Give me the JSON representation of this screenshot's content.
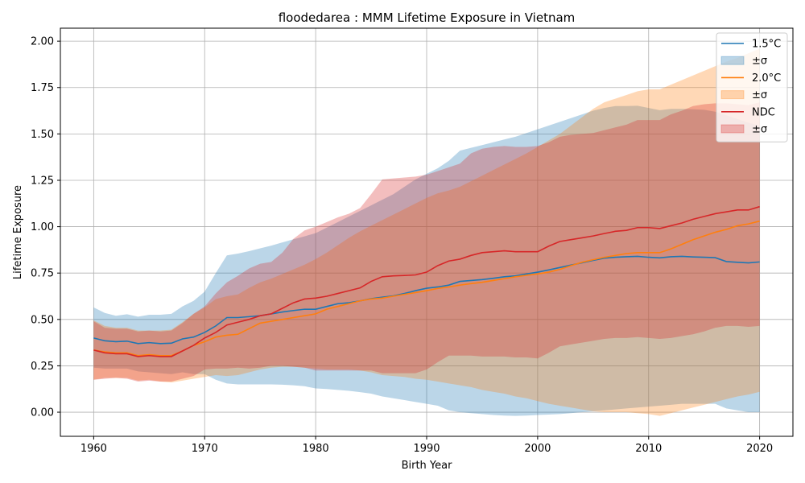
{
  "chart_data": {
    "type": "line",
    "title": "floodedarea : MMM Lifetime Exposure in Vietnam",
    "xlabel": "Birth Year",
    "ylabel": "Lifetime Exposure",
    "xlim": [
      1957,
      2023
    ],
    "ylim": [
      -0.13,
      2.07
    ],
    "xticks": [
      1960,
      1970,
      1980,
      1990,
      2000,
      2010,
      2020
    ],
    "xtick_labels": [
      "1960",
      "1970",
      "1980",
      "1990",
      "2000",
      "2010",
      "2020"
    ],
    "yticks": [
      0.0,
      0.25,
      0.5,
      0.75,
      1.0,
      1.25,
      1.5,
      1.75,
      2.0
    ],
    "ytick_labels": [
      "0.00",
      "0.25",
      "0.50",
      "0.75",
      "1.00",
      "1.25",
      "1.50",
      "1.75",
      "2.00"
    ],
    "grid": true,
    "legend_position": "top-right",
    "x": [
      1960,
      1961,
      1962,
      1963,
      1964,
      1965,
      1966,
      1967,
      1968,
      1969,
      1970,
      1971,
      1972,
      1973,
      1974,
      1975,
      1976,
      1977,
      1978,
      1979,
      1980,
      1981,
      1982,
      1983,
      1984,
      1985,
      1986,
      1987,
      1988,
      1989,
      1990,
      1991,
      1992,
      1993,
      1994,
      1995,
      1996,
      1997,
      1998,
      1999,
      2000,
      2001,
      2002,
      2003,
      2004,
      2005,
      2006,
      2007,
      2008,
      2009,
      2010,
      2011,
      2012,
      2013,
      2014,
      2015,
      2016,
      2017,
      2018,
      2019,
      2020
    ],
    "series": [
      {
        "name": "1.5°C",
        "band_label": "±σ",
        "color": "#1f77b4",
        "band_color": "#1f77b4",
        "values": [
          0.4,
          0.385,
          0.38,
          0.383,
          0.37,
          0.375,
          0.37,
          0.372,
          0.395,
          0.405,
          0.43,
          0.465,
          0.51,
          0.51,
          0.515,
          0.52,
          0.53,
          0.54,
          0.548,
          0.555,
          0.555,
          0.57,
          0.585,
          0.59,
          0.6,
          0.612,
          0.62,
          0.627,
          0.64,
          0.655,
          0.668,
          0.675,
          0.685,
          0.705,
          0.71,
          0.715,
          0.722,
          0.73,
          0.735,
          0.745,
          0.755,
          0.767,
          0.78,
          0.793,
          0.805,
          0.818,
          0.83,
          0.835,
          0.838,
          0.84,
          0.835,
          0.832,
          0.838,
          0.84,
          0.837,
          0.835,
          0.833,
          0.812,
          0.808,
          0.805,
          0.81
        ],
        "upper": [
          0.565,
          0.535,
          0.52,
          0.528,
          0.515,
          0.525,
          0.525,
          0.53,
          0.57,
          0.6,
          0.65,
          0.75,
          0.845,
          0.855,
          0.868,
          0.883,
          0.898,
          0.915,
          0.932,
          0.948,
          0.965,
          0.995,
          1.025,
          1.055,
          1.085,
          1.115,
          1.145,
          1.175,
          1.215,
          1.255,
          1.285,
          1.315,
          1.355,
          1.41,
          1.425,
          1.44,
          1.455,
          1.47,
          1.485,
          1.505,
          1.525,
          1.545,
          1.565,
          1.585,
          1.605,
          1.625,
          1.64,
          1.65,
          1.65,
          1.652,
          1.64,
          1.628,
          1.635,
          1.635,
          1.633,
          1.63,
          1.62,
          1.6,
          1.58,
          1.56,
          1.545
        ],
        "lower": [
          0.24,
          0.235,
          0.235,
          0.235,
          0.22,
          0.215,
          0.21,
          0.205,
          0.215,
          0.205,
          0.205,
          0.175,
          0.155,
          0.15,
          0.15,
          0.15,
          0.15,
          0.148,
          0.145,
          0.14,
          0.128,
          0.125,
          0.12,
          0.115,
          0.108,
          0.1,
          0.085,
          0.075,
          0.065,
          0.055,
          0.045,
          0.035,
          0.01,
          0.0,
          -0.005,
          -0.01,
          -0.015,
          -0.018,
          -0.02,
          -0.018,
          -0.015,
          -0.013,
          -0.01,
          -0.005,
          0.0,
          0.005,
          0.01,
          0.015,
          0.02,
          0.025,
          0.03,
          0.035,
          0.04,
          0.045,
          0.045,
          0.045,
          0.045,
          0.02,
          0.01,
          0.0,
          0.0
        ]
      },
      {
        "name": "2.0°C",
        "band_label": "±σ",
        "color": "#ff7f0e",
        "band_color": "#ff7f0e",
        "values": [
          0.335,
          0.325,
          0.32,
          0.32,
          0.305,
          0.31,
          0.305,
          0.305,
          0.33,
          0.36,
          0.38,
          0.405,
          0.415,
          0.42,
          0.45,
          0.48,
          0.49,
          0.5,
          0.51,
          0.52,
          0.53,
          0.555,
          0.57,
          0.585,
          0.6,
          0.61,
          0.615,
          0.625,
          0.635,
          0.645,
          0.655,
          0.667,
          0.675,
          0.685,
          0.693,
          0.7,
          0.71,
          0.72,
          0.73,
          0.738,
          0.745,
          0.755,
          0.77,
          0.79,
          0.808,
          0.822,
          0.835,
          0.845,
          0.855,
          0.86,
          0.86,
          0.86,
          0.88,
          0.905,
          0.93,
          0.95,
          0.97,
          0.985,
          1.005,
          1.015,
          1.03
        ],
        "upper": [
          0.495,
          0.465,
          0.455,
          0.455,
          0.44,
          0.44,
          0.44,
          0.445,
          0.485,
          0.53,
          0.565,
          0.61,
          0.625,
          0.635,
          0.67,
          0.7,
          0.72,
          0.745,
          0.77,
          0.795,
          0.825,
          0.86,
          0.9,
          0.94,
          0.975,
          1.005,
          1.035,
          1.065,
          1.095,
          1.125,
          1.155,
          1.18,
          1.195,
          1.215,
          1.245,
          1.275,
          1.305,
          1.335,
          1.365,
          1.395,
          1.43,
          1.465,
          1.5,
          1.545,
          1.59,
          1.635,
          1.67,
          1.69,
          1.71,
          1.73,
          1.74,
          1.74,
          1.765,
          1.79,
          1.815,
          1.84,
          1.865,
          1.89,
          1.91,
          1.935,
          1.96
        ],
        "lower": [
          0.175,
          0.185,
          0.185,
          0.185,
          0.17,
          0.175,
          0.165,
          0.16,
          0.17,
          0.18,
          0.19,
          0.2,
          0.195,
          0.2,
          0.215,
          0.23,
          0.24,
          0.245,
          0.245,
          0.24,
          0.235,
          0.23,
          0.23,
          0.23,
          0.225,
          0.215,
          0.2,
          0.195,
          0.19,
          0.18,
          0.175,
          0.165,
          0.155,
          0.145,
          0.135,
          0.12,
          0.11,
          0.1,
          0.085,
          0.075,
          0.06,
          0.045,
          0.035,
          0.025,
          0.015,
          0.005,
          0.0,
          0.0,
          0.0,
          -0.005,
          -0.01,
          -0.02,
          -0.005,
          0.01,
          0.025,
          0.04,
          0.055,
          0.07,
          0.085,
          0.095,
          0.11
        ]
      },
      {
        "name": "NDC",
        "band_label": "±σ",
        "color": "#d62728",
        "band_color": "#d62728",
        "values": [
          0.335,
          0.32,
          0.315,
          0.315,
          0.3,
          0.305,
          0.3,
          0.3,
          0.33,
          0.36,
          0.4,
          0.43,
          0.47,
          0.485,
          0.5,
          0.52,
          0.53,
          0.56,
          0.59,
          0.61,
          0.615,
          0.625,
          0.64,
          0.655,
          0.67,
          0.705,
          0.73,
          0.735,
          0.737,
          0.74,
          0.755,
          0.79,
          0.815,
          0.825,
          0.845,
          0.86,
          0.865,
          0.87,
          0.865,
          0.865,
          0.865,
          0.895,
          0.92,
          0.93,
          0.94,
          0.95,
          0.963,
          0.975,
          0.98,
          0.995,
          0.995,
          0.99,
          1.005,
          1.02,
          1.04,
          1.055,
          1.07,
          1.08,
          1.09,
          1.09,
          1.108
        ],
        "upper": [
          0.49,
          0.455,
          0.45,
          0.45,
          0.435,
          0.44,
          0.435,
          0.44,
          0.48,
          0.53,
          0.57,
          0.64,
          0.7,
          0.735,
          0.775,
          0.8,
          0.81,
          0.86,
          0.935,
          0.98,
          1.0,
          1.025,
          1.05,
          1.07,
          1.1,
          1.175,
          1.255,
          1.26,
          1.265,
          1.27,
          1.28,
          1.3,
          1.32,
          1.34,
          1.395,
          1.42,
          1.43,
          1.435,
          1.43,
          1.43,
          1.435,
          1.455,
          1.485,
          1.495,
          1.5,
          1.505,
          1.52,
          1.535,
          1.55,
          1.575,
          1.575,
          1.575,
          1.605,
          1.625,
          1.65,
          1.66,
          1.665,
          1.665,
          1.66,
          1.655,
          1.67
        ],
        "lower": [
          0.175,
          0.18,
          0.185,
          0.18,
          0.165,
          0.17,
          0.165,
          0.165,
          0.18,
          0.195,
          0.23,
          0.235,
          0.235,
          0.24,
          0.235,
          0.24,
          0.25,
          0.25,
          0.245,
          0.24,
          0.225,
          0.225,
          0.225,
          0.225,
          0.225,
          0.225,
          0.21,
          0.21,
          0.21,
          0.21,
          0.23,
          0.27,
          0.305,
          0.305,
          0.305,
          0.3,
          0.3,
          0.3,
          0.295,
          0.295,
          0.29,
          0.32,
          0.355,
          0.365,
          0.375,
          0.385,
          0.395,
          0.4,
          0.4,
          0.405,
          0.4,
          0.395,
          0.4,
          0.41,
          0.42,
          0.435,
          0.455,
          0.465,
          0.465,
          0.46,
          0.465
        ]
      }
    ]
  }
}
